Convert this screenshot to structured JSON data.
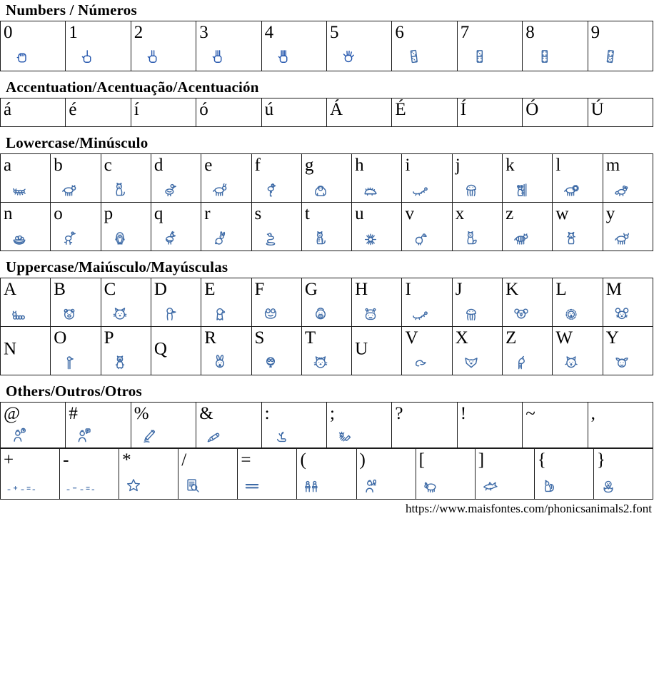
{
  "colors": {
    "icon_blue": "#3d6aa6",
    "hand_blue": "#2456ad",
    "text": "#000000",
    "border": "#1c1c1c"
  },
  "footer": {
    "url": "https://www.maisfontes.com/phonicsanimals2.font"
  },
  "sections": [
    {
      "id": "numbers",
      "title": "Numbers / Números",
      "tables": [
        {
          "cols": 10,
          "cells": [
            [
              {
                "ch": "0",
                "glyph": "hand-zero"
              },
              {
                "ch": "1",
                "glyph": "hand-one"
              },
              {
                "ch": "2",
                "glyph": "hand-two"
              },
              {
                "ch": "3",
                "glyph": "hand-three"
              },
              {
                "ch": "4",
                "glyph": "hand-four"
              },
              {
                "ch": "5",
                "glyph": "hand-five"
              },
              {
                "ch": "6",
                "glyph": "domino-six"
              },
              {
                "ch": "7",
                "glyph": "domino-seven"
              },
              {
                "ch": "8",
                "glyph": "domino-eight"
              },
              {
                "ch": "9",
                "glyph": "domino-nine"
              }
            ]
          ]
        }
      ]
    },
    {
      "id": "accentuation",
      "title": "Accentuation/Acentuação/Acentuación",
      "tables": [
        {
          "cols": 10,
          "cells": [
            [
              {
                "ch": "á",
                "glyph": ""
              },
              {
                "ch": "é",
                "glyph": ""
              },
              {
                "ch": "í",
                "glyph": ""
              },
              {
                "ch": "ó",
                "glyph": ""
              },
              {
                "ch": "ú",
                "glyph": ""
              },
              {
                "ch": "Á",
                "glyph": ""
              },
              {
                "ch": "É",
                "glyph": ""
              },
              {
                "ch": "Í",
                "glyph": ""
              },
              {
                "ch": "Ó",
                "glyph": ""
              },
              {
                "ch": "Ú",
                "glyph": ""
              }
            ]
          ]
        }
      ]
    },
    {
      "id": "lowercase",
      "title": "Lowercase/Minúsculo",
      "tables": [
        {
          "cols": 13,
          "cells": [
            [
              {
                "ch": "a",
                "glyph": "ant"
              },
              {
                "ch": "b",
                "glyph": "bear"
              },
              {
                "ch": "c",
                "glyph": "cat"
              },
              {
                "ch": "d",
                "glyph": "duck"
              },
              {
                "ch": "e",
                "glyph": "deer"
              },
              {
                "ch": "f",
                "glyph": "flamingo"
              },
              {
                "ch": "g",
                "glyph": "gorilla"
              },
              {
                "ch": "h",
                "glyph": "hedgehog"
              },
              {
                "ch": "i",
                "glyph": "iguana"
              },
              {
                "ch": "j",
                "glyph": "jellyfish"
              },
              {
                "ch": "k",
                "glyph": "koala"
              },
              {
                "ch": "l",
                "glyph": "lion"
              },
              {
                "ch": "m",
                "glyph": "mouse"
              }
            ],
            [
              {
                "ch": "n",
                "glyph": "nest"
              },
              {
                "ch": "o",
                "glyph": "ostrich"
              },
              {
                "ch": "p",
                "glyph": "penguin"
              },
              {
                "ch": "q",
                "glyph": "quail"
              },
              {
                "ch": "r",
                "glyph": "rabbit"
              },
              {
                "ch": "s",
                "glyph": "snake"
              },
              {
                "ch": "t",
                "glyph": "tiger"
              },
              {
                "ch": "u",
                "glyph": "urchin"
              },
              {
                "ch": "v",
                "glyph": "vulture"
              },
              {
                "ch": "x",
                "glyph": "fox"
              },
              {
                "ch": "z",
                "glyph": "zebra"
              },
              {
                "ch": "w",
                "glyph": "wolf"
              },
              {
                "ch": "y",
                "glyph": "yak"
              }
            ]
          ]
        }
      ]
    },
    {
      "id": "uppercase",
      "title": "Uppercase/Maiúsculo/Mayúsculas",
      "center_empty": true,
      "tables": [
        {
          "cols": 13,
          "cells": [
            [
              {
                "ch": "A",
                "glyph": "caterpillar"
              },
              {
                "ch": "B",
                "glyph": "bear-face"
              },
              {
                "ch": "C",
                "glyph": "cat-face"
              },
              {
                "ch": "D",
                "glyph": "duck-head"
              },
              {
                "ch": "E",
                "glyph": "eagle-head"
              },
              {
                "ch": "F",
                "glyph": "frog-face"
              },
              {
                "ch": "G",
                "glyph": "gorilla-face"
              },
              {
                "ch": "H",
                "glyph": "hippo-face"
              },
              {
                "ch": "I",
                "glyph": "iguana"
              },
              {
                "ch": "J",
                "glyph": "jellyfish"
              },
              {
                "ch": "K",
                "glyph": "koala-face"
              },
              {
                "ch": "L",
                "glyph": "lion-face"
              },
              {
                "ch": "M",
                "glyph": "mouse-face"
              }
            ],
            [
              {
                "ch": "N",
                "glyph": ""
              },
              {
                "ch": "O",
                "glyph": "ostrich-head"
              },
              {
                "ch": "P",
                "glyph": "pig"
              },
              {
                "ch": "Q",
                "glyph": ""
              },
              {
                "ch": "R",
                "glyph": "rabbit-face"
              },
              {
                "ch": "S",
                "glyph": "snake-face"
              },
              {
                "ch": "T",
                "glyph": "tiger-face"
              },
              {
                "ch": "U",
                "glyph": ""
              },
              {
                "ch": "V",
                "glyph": "vulture-head"
              },
              {
                "ch": "X",
                "glyph": "fox-face"
              },
              {
                "ch": "Z",
                "glyph": "zebra-head"
              },
              {
                "ch": "W",
                "glyph": "wolf-face"
              },
              {
                "ch": "Y",
                "glyph": "yak-face"
              }
            ]
          ]
        }
      ]
    },
    {
      "id": "others",
      "title": "Others/Outros/Otros",
      "tables": [
        {
          "cols": 10,
          "cells": [
            [
              {
                "ch": "@",
                "glyph": "thinking-person"
              },
              {
                "ch": "#",
                "glyph": "speaking-person"
              },
              {
                "ch": "%",
                "glyph": "pencil"
              },
              {
                "ch": "&",
                "glyph": "pen"
              },
              {
                "ch": ":",
                "glyph": "hand-plant"
              },
              {
                "ch": ";",
                "glyph": "planting-hand"
              },
              {
                "ch": "?",
                "glyph": ""
              },
              {
                "ch": "!",
                "glyph": ""
              },
              {
                "ch": "~",
                "glyph": ""
              },
              {
                "ch": ",",
                "glyph": ""
              }
            ]
          ]
        },
        {
          "cols": 11,
          "cells": [
            [
              {
                "ch": "+",
                "glyph": "addition-equation"
              },
              {
                "ch": "-",
                "glyph": "subtraction-equation"
              },
              {
                "ch": "*",
                "glyph": "star"
              },
              {
                "ch": "/",
                "glyph": "document-search"
              },
              {
                "ch": "=",
                "glyph": "equal-lines"
              },
              {
                "ch": "(",
                "glyph": "students-desks"
              },
              {
                "ch": ")",
                "glyph": "person-microphone"
              },
              {
                "ch": "[",
                "glyph": "sheep"
              },
              {
                "ch": "]",
                "glyph": "shark"
              },
              {
                "ch": "{",
                "glyph": "squirrel"
              },
              {
                "ch": "}",
                "glyph": "hatching-chick"
              }
            ]
          ]
        }
      ]
    }
  ]
}
